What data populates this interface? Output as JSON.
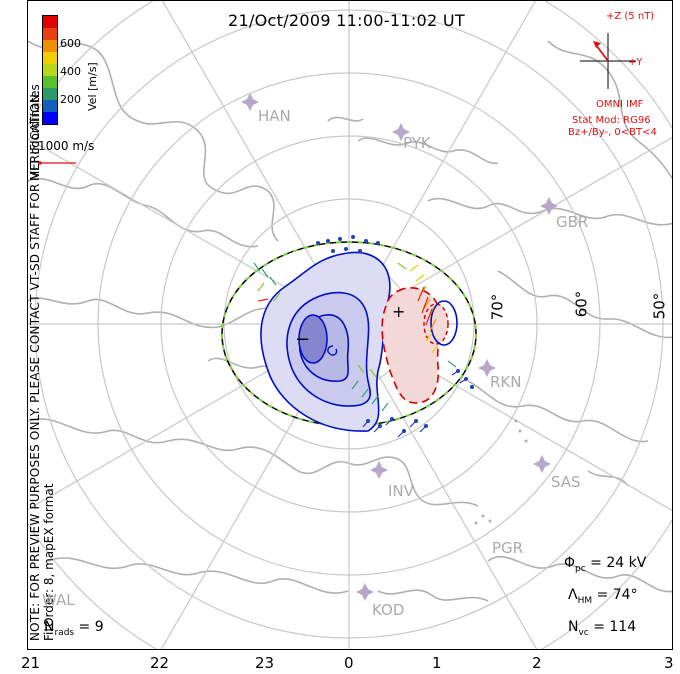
{
  "title": "21/Oct/2009 11:00-11:02 UT",
  "note_line1": "NOTE: FOR PREVIEW PURPOSES ONLY. PLEASE CONTACT VT-SD STAFF FOR VERIFICATION.",
  "note_line2": "FitOrder: 8, mapEX format",
  "coords_label": "MLT coordinates",
  "colorbar": {
    "label": "Vel [m/s]",
    "ticks": [
      "600",
      "400",
      "200"
    ],
    "colors": [
      "#0000ff",
      "#1060c0",
      "#2a9a6a",
      "#5bbf2a",
      "#b8d818",
      "#f0d000",
      "#f09000",
      "#e84010",
      "#e00000"
    ]
  },
  "vector_scale": "1000 m/s",
  "imf": {
    "z_label": "+Z (5 nT)",
    "y_label": "+Y",
    "source": "OMNI IMF",
    "model": "Stat Mod: RG96",
    "condition": "Bz+/By-, 0<BT<4"
  },
  "stations": [
    "HAN",
    "PYK",
    "GBR",
    "RKN",
    "SAS",
    "INV",
    "PGR",
    "KOD",
    "WAL"
  ],
  "latitudes": [
    "70°",
    "60°",
    "50°"
  ],
  "contour_signs": {
    "minus": "−",
    "plus": "+"
  },
  "stats": {
    "phi_sym": "Φ",
    "phi_sub": "pc",
    "phi_val": " = 24 kV",
    "lam_sym": "Λ",
    "lam_sub": "HM",
    "lam_val": " = 74°",
    "nvc_sym": "N",
    "nvc_sub": "vc",
    "nvc_val": " = 114",
    "nrads_sym": "N",
    "nrads_sub": "rads",
    "nrads_val": " = 9"
  },
  "x_axis_ticks": [
    "21",
    "22",
    "23",
    "0",
    "1",
    "2",
    "3"
  ]
}
